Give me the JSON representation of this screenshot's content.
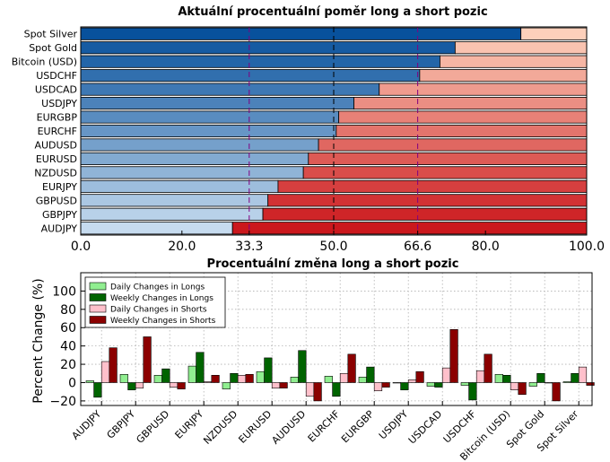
{
  "chart_data": [
    {
      "type": "bar",
      "orientation": "horizontal",
      "stacked": true,
      "title": "Aktuální procentuální poměr long a short pozic",
      "categories": [
        "Spot Silver",
        "Spot Gold",
        "Bitcoin (USD)",
        "USDCHF",
        "USDCAD",
        "USDJPY",
        "EURGBP",
        "EURCHF",
        "AUDUSD",
        "EURUSD",
        "NZDUSD",
        "EURJPY",
        "GBPUSD",
        "GBPJPY",
        "AUDJPY"
      ],
      "series": [
        {
          "values": [
            87,
            74,
            71,
            67,
            59,
            54,
            51,
            50.5,
            47,
            45,
            44,
            39,
            37,
            36,
            30
          ]
        },
        {
          "values": [
            13,
            26,
            29,
            33,
            41,
            46,
            49,
            49.5,
            53,
            55,
            56,
            61,
            63,
            64,
            70
          ]
        }
      ],
      "xlim": [
        0,
        100
      ],
      "xticks": [
        "0.0",
        "20.0",
        "33.3",
        "50.0",
        "66.6",
        "80.0",
        "100.0"
      ],
      "reference_lines": [
        33.3,
        50.0,
        66.6
      ],
      "colors": {
        "reference_line": "#800080",
        "highlight_tick": "#800080"
      }
    },
    {
      "type": "bar",
      "title": "Procentuální změna long a short pozic",
      "ylabel": "Percent Change (%)",
      "categories": [
        "AUDJPY",
        "GBPJPY",
        "GBPUSD",
        "EURJPY",
        "NZDUSD",
        "EURUSD",
        "AUDUSD",
        "EURCHF",
        "EURGBP",
        "USDJPY",
        "USDCAD",
        "USDCHF",
        "Bitcoin (USD)",
        "Spot Gold",
        "Spot Silver"
      ],
      "ylim": [
        -25,
        120
      ],
      "yticks": [
        "100",
        "80",
        "60",
        "40",
        "20",
        "0",
        "−20"
      ],
      "grid": true,
      "legend_position": "top-left",
      "series": [
        {
          "name": "Daily Changes in Longs",
          "color": "#90ee90",
          "values": [
            2,
            9,
            8,
            18,
            -7,
            12,
            6,
            7,
            6,
            0,
            -4,
            -3,
            9,
            -4,
            1
          ]
        },
        {
          "name": "Weekly Changes in Longs",
          "color": "#006400",
          "values": [
            -16,
            -8,
            15,
            33,
            10,
            27,
            35,
            -15,
            17,
            -8,
            -5,
            -19,
            8,
            10,
            10
          ]
        },
        {
          "name": "Daily Changes in Shorts",
          "color": "#ffc0cb",
          "values": [
            23,
            -6,
            -5,
            1,
            8,
            -6,
            -15,
            10,
            -9,
            3,
            16,
            13,
            -8,
            0,
            17
          ]
        },
        {
          "name": "Weekly Changes in Shorts",
          "color": "#8b0000",
          "values": [
            38,
            50,
            -7,
            8,
            9,
            -6,
            -20,
            31,
            -5,
            12,
            58,
            31,
            -13,
            -20,
            -3
          ]
        }
      ]
    }
  ]
}
